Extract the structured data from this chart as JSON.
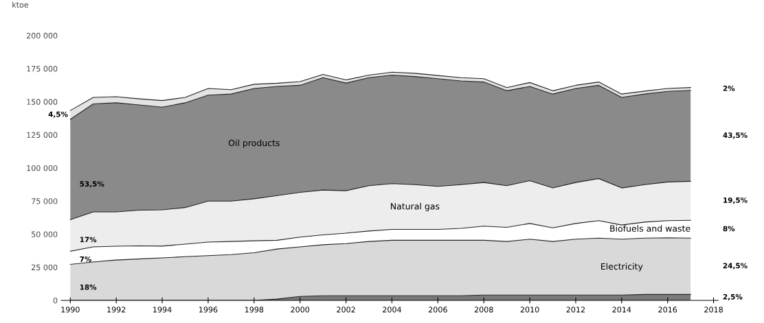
{
  "chart_data": {
    "type": "area",
    "stacked": true,
    "ylabel": "ktoe",
    "x": [
      1990,
      1991,
      1992,
      1993,
      1994,
      1995,
      1996,
      1997,
      1998,
      1999,
      2000,
      2001,
      2002,
      2003,
      2004,
      2005,
      2006,
      2007,
      2008,
      2009,
      2010,
      2011,
      2012,
      2013,
      2014,
      2015,
      2016,
      2017
    ],
    "series": [
      {
        "color": "#7a7a7a",
        "values": [
          0,
          0,
          0,
          0,
          0,
          0,
          0,
          0,
          0,
          1000,
          3000,
          3500,
          3500,
          3500,
          3500,
          3500,
          3500,
          3500,
          4000,
          4000,
          4000,
          4000,
          4000,
          4000,
          4000,
          4500,
          4500,
          4500
        ]
      },
      {
        "name": "Electricity",
        "color": "#d9d9d9",
        "values": [
          27200,
          29000,
          30500,
          31300,
          32100,
          33000,
          33800,
          34600,
          36000,
          37800,
          37400,
          38500,
          39400,
          41000,
          41900,
          41900,
          41900,
          41900,
          41400,
          40500,
          42200,
          40500,
          42200,
          43000,
          42200,
          42500,
          42800,
          42500
        ]
      },
      {
        "name": "Biofuels and waste",
        "color": "#ffffff",
        "values": [
          9900,
          11400,
          10400,
          9900,
          8900,
          9500,
          10200,
          9900,
          9000,
          6600,
          7400,
          7500,
          7900,
          7900,
          8200,
          8200,
          8200,
          9000,
          10700,
          10700,
          11900,
          10300,
          11900,
          13200,
          10700,
          12100,
          12900,
          13500
        ]
      },
      {
        "name": "Natural gas",
        "color": "#ededed",
        "values": [
          23900,
          26400,
          25900,
          26900,
          27400,
          27600,
          31000,
          30500,
          31700,
          33700,
          33800,
          33800,
          32000,
          34200,
          34600,
          33800,
          32500,
          33000,
          32900,
          31400,
          32300,
          30100,
          30900,
          31800,
          28000,
          28300,
          29200,
          29400
        ]
      },
      {
        "name": "Oil products",
        "color": "#8a8a8a",
        "values": [
          75800,
          81600,
          82400,
          79500,
          77500,
          79100,
          80000,
          80800,
          83300,
          82500,
          80800,
          84900,
          81300,
          81600,
          81900,
          81600,
          81300,
          78300,
          75900,
          71700,
          71200,
          70900,
          71000,
          70400,
          68400,
          68400,
          68400,
          68700
        ]
      },
      {
        "color": "#e3e3e3",
        "values": [
          6600,
          4900,
          4600,
          4600,
          5000,
          4100,
          5000,
          3300,
          3200,
          2400,
          2800,
          2400,
          2400,
          1900,
          2200,
          2500,
          2400,
          2500,
          2500,
          2400,
          2900,
          2500,
          2400,
          2500,
          2500,
          2200,
          2200,
          2100
        ]
      }
    ],
    "xlim": [
      1989.6,
      2018.2
    ],
    "xticks": [
      1990,
      1992,
      1994,
      1996,
      1998,
      2000,
      2002,
      2004,
      2006,
      2008,
      2010,
      2012,
      2014,
      2016,
      2018
    ],
    "ylim": [
      0,
      200000
    ],
    "yticks": [
      {
        "value": 0,
        "label": "0"
      },
      {
        "value": 25000,
        "label": "25 000"
      },
      {
        "value": 50000,
        "label": "50 000"
      },
      {
        "value": 75000,
        "label": "75 000"
      },
      {
        "value": 100000,
        "label": "100 000"
      },
      {
        "value": 125000,
        "label": "125 000"
      },
      {
        "value": 150000,
        "label": "150 000"
      },
      {
        "value": 175000,
        "label": "175 000"
      },
      {
        "value": 200000,
        "label": "200 000"
      }
    ],
    "grid": false,
    "annotations": [
      "4,5%",
      "53,5%",
      "17%",
      "7%",
      "18%",
      "2%",
      "43,5%",
      "19,5%",
      "8%",
      "24,5%",
      "2,5%"
    ]
  }
}
